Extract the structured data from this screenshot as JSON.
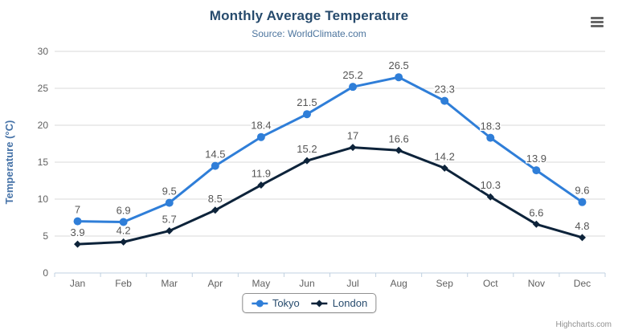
{
  "header": {
    "title": "Monthly Average Temperature",
    "subtitle": "Source: WorldClimate.com"
  },
  "toolbar": {
    "menu_icon": "hamburger-menu"
  },
  "credit_label": "Highcharts.com",
  "colors": {
    "title": "#274b6d",
    "subtitle": "#4d759e",
    "axis_title": "#4572a7",
    "tick_label": "#606060",
    "data_label": "#555555",
    "grid_line": "#d8d8d8",
    "axis_line": "#c0d0e0",
    "legend_border": "#909090",
    "credit": "#909090",
    "menu_icon": "#666666",
    "tokyo": "#2f7ed8",
    "london": "#0d233a"
  },
  "chart_data": {
    "type": "line",
    "title": "Monthly Average Temperature",
    "subtitle": "Source: WorldClimate.com",
    "categories": [
      "Jan",
      "Feb",
      "Mar",
      "Apr",
      "May",
      "Jun",
      "Jul",
      "Aug",
      "Sep",
      "Oct",
      "Nov",
      "Dec"
    ],
    "series": [
      {
        "name": "Tokyo",
        "color": "#2f7ed8",
        "marker": "circle",
        "values": [
          7,
          6.9,
          9.5,
          14.5,
          18.4,
          21.5,
          25.2,
          26.5,
          23.3,
          18.3,
          13.9,
          9.6
        ]
      },
      {
        "name": "London",
        "color": "#0d233a",
        "marker": "diamond",
        "values": [
          3.9,
          4.2,
          5.7,
          8.5,
          11.9,
          15.2,
          17,
          16.6,
          14.2,
          10.3,
          6.6,
          4.8
        ]
      }
    ],
    "xlabel": "",
    "ylabel": "Temperature (°C)",
    "ylim": [
      0,
      30
    ],
    "ytick_step": 5,
    "grid": true,
    "data_labels": true,
    "legend_position": "bottom-center"
  }
}
